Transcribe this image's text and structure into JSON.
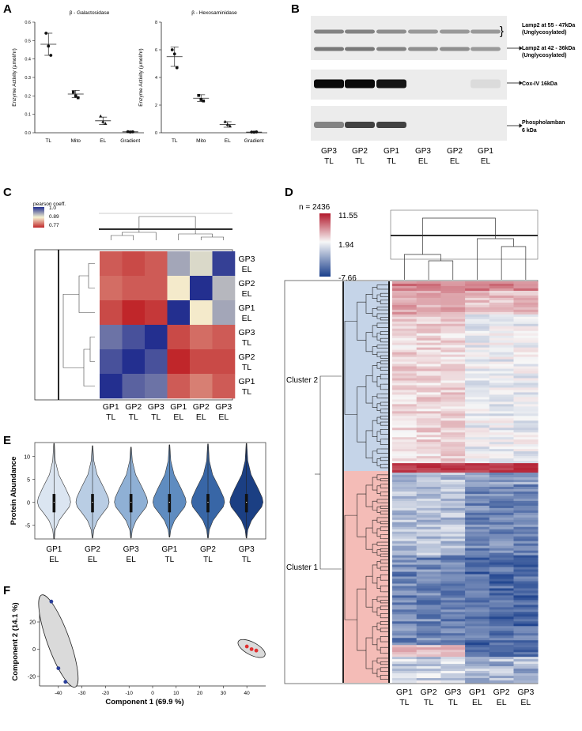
{
  "panels": {
    "a": "A",
    "b": "B",
    "c": "C",
    "d": "D",
    "e": "E",
    "f": "F"
  },
  "colors": {
    "heat_red": "#b2182b",
    "heat_white": "#f5f5f5",
    "heat_blue": "#1a3f8c",
    "corr_red": "#c0262a",
    "corr_yellow": "#f6f3d2",
    "corr_blue": "#232f8f",
    "cluster1_bg": "#f4bcb7",
    "cluster2_bg": "#c5d4e8",
    "violin_colors": [
      "#dbe5f1",
      "#b9cde4",
      "#8fb0d5",
      "#5f8cc0",
      "#3866a6",
      "#1b3f83"
    ],
    "pca_el": "#2a3f9a",
    "pca_tl": "#e03030",
    "ellipse": "#dadada"
  },
  "chart_data": [
    {
      "id": "A-left",
      "type": "scatter",
      "title": "β - Galactosidase",
      "ylabel": "Enzyme Activity (µmol/hr)",
      "categories": [
        "TL",
        "Mito",
        "EL",
        "Gradient"
      ],
      "ylim": [
        0,
        0.6
      ],
      "yticks": [
        "0.0",
        "0.1",
        "0.2",
        "0.3",
        "0.4",
        "0.5",
        "0.6"
      ],
      "means": [
        0.48,
        0.21,
        0.065,
        0.005
      ],
      "sd": [
        0.06,
        0.02,
        0.02,
        0.003
      ],
      "points": [
        [
          0.54,
          0.47,
          0.42
        ],
        [
          0.22,
          0.2,
          0.19
        ],
        [
          0.09,
          0.06,
          0.05
        ],
        [
          0.006,
          0.004,
          0.005
        ]
      ],
      "markers": [
        "circle",
        "square",
        "triangle",
        "circle"
      ]
    },
    {
      "id": "A-right",
      "type": "scatter",
      "title": "β - Hexosaminidase",
      "ylabel": "Enzyme Activity (µmol/hr)",
      "categories": [
        "TL",
        "Mito",
        "EL",
        "Gradient"
      ],
      "ylim": [
        0,
        8
      ],
      "yticks": [
        "0",
        "2",
        "4",
        "6",
        "8"
      ],
      "means": [
        5.5,
        2.5,
        0.6,
        0.05
      ],
      "sd": [
        0.7,
        0.25,
        0.2,
        0.02
      ],
      "points": [
        [
          6.0,
          5.7,
          4.7
        ],
        [
          2.7,
          2.4,
          2.3
        ],
        [
          0.8,
          0.6,
          0.5
        ],
        [
          0.05,
          0.04,
          0.06
        ]
      ],
      "markers": [
        "circle",
        "square",
        "triangle",
        "circle"
      ]
    },
    {
      "id": "C",
      "type": "heatmap",
      "title": "pearson coeff.",
      "legend_ticks": [
        "1.0",
        "0.89",
        "0.77"
      ],
      "rows": [
        "GP3 EL",
        "GP2 EL",
        "GP1 EL",
        "GP3 TL",
        "GP2 TL",
        "GP1 TL"
      ],
      "cols": [
        "GP1 TL",
        "GP2 TL",
        "GP3 TL",
        "GP1 EL",
        "GP2 EL",
        "GP3 EL"
      ],
      "values": [
        [
          0.8,
          0.79,
          0.8,
          0.93,
          0.9,
          0.99
        ],
        [
          0.81,
          0.8,
          0.8,
          0.88,
          1.0,
          0.92
        ],
        [
          0.79,
          0.77,
          0.78,
          1.0,
          0.88,
          0.93
        ],
        [
          0.96,
          0.98,
          1.0,
          0.79,
          0.81,
          0.8
        ],
        [
          0.98,
          1.0,
          0.98,
          0.77,
          0.79,
          0.79
        ],
        [
          1.0,
          0.97,
          0.96,
          0.8,
          0.82,
          0.8
        ]
      ]
    },
    {
      "id": "D",
      "type": "heatmap",
      "title": "n = 2436",
      "scale": [
        "11.55",
        "1.94",
        "-7.66"
      ],
      "cols": [
        "GP1 TL",
        "GP2 TL",
        "GP3 TL",
        "GP1 EL",
        "GP2 EL",
        "GP3 EL"
      ],
      "clusters": [
        "Cluster 2",
        "Cluster 1"
      ]
    },
    {
      "id": "E",
      "type": "violin",
      "ylabel": "Protein Abundance",
      "categories": [
        "GP1 EL",
        "GP2 EL",
        "GP3 EL",
        "GP1 TL",
        "GP2 TL",
        "GP3 TL"
      ],
      "ylim": [
        -8,
        13
      ],
      "yticks": [
        "10",
        "5",
        "0",
        "-5"
      ],
      "maxes": [
        12.8,
        12.3,
        12.0,
        12.5,
        12.7,
        12.8
      ],
      "mins": [
        -8.0,
        -7.8,
        -7.8,
        -7.6,
        -7.8,
        -7.8
      ]
    },
    {
      "id": "F",
      "type": "scatter",
      "xlabel": "Component 1 (69.9 %)",
      "ylabel": "Component 2 (14.1 %)",
      "xlim": [
        -48,
        48
      ],
      "ylim": [
        -27,
        38
      ],
      "xticks": [
        "-40",
        "-30",
        "-20",
        "-10",
        "0",
        "10",
        "20",
        "30",
        "40"
      ],
      "yticks": [
        "20",
        "0",
        "-20"
      ],
      "series": [
        {
          "name": "EL",
          "points": [
            [
              -43,
              35
            ],
            [
              -40,
              -14
            ],
            [
              -37,
              -24
            ]
          ]
        },
        {
          "name": "TL",
          "points": [
            [
              40,
              2
            ],
            [
              42,
              0
            ],
            [
              44,
              -1
            ]
          ]
        }
      ]
    }
  ],
  "blot": {
    "bands": [
      {
        "label": "Lamp2 at 55 - 47kDa",
        "sub": "(Unglycosylated)"
      },
      {
        "label": "Lamp2 at 42 - 36kDa",
        "sub": "(Unglycosylated)"
      },
      {
        "label": "Cox-IV 16kDa",
        "sub": ""
      },
      {
        "label": "Phospholamban",
        "sub": "6 kDa"
      }
    ],
    "lanes": [
      [
        "GP3",
        "TL"
      ],
      [
        "GP2",
        "TL"
      ],
      [
        "GP1",
        "TL"
      ],
      [
        "GP3",
        "EL"
      ],
      [
        "GP2",
        "EL"
      ],
      [
        "GP1",
        "EL"
      ]
    ]
  }
}
